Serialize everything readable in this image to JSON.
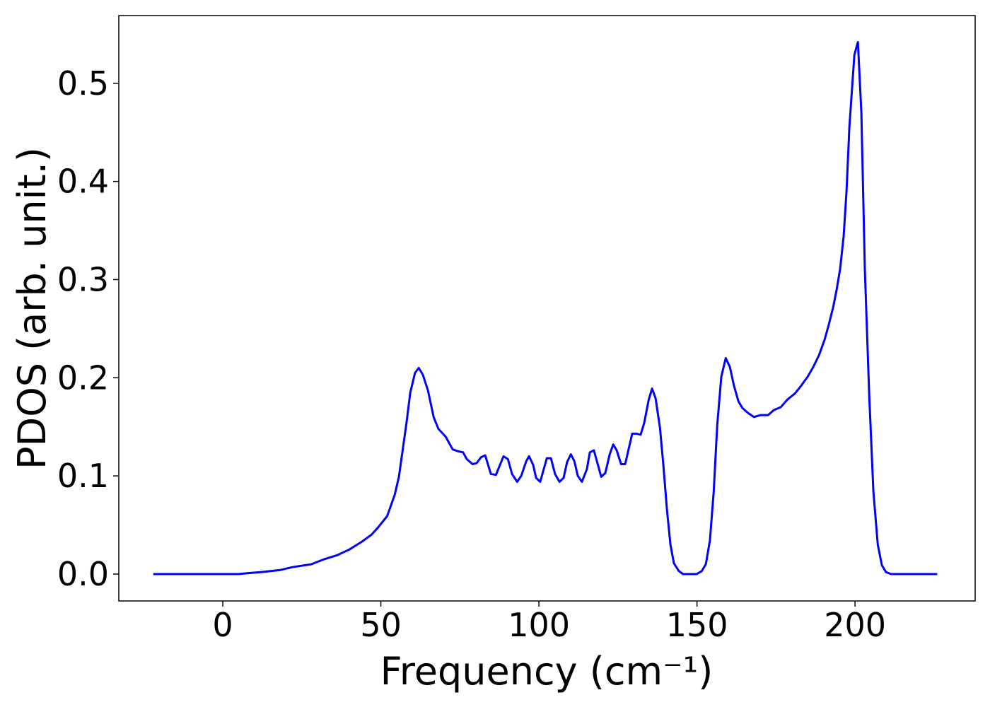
{
  "chart_data": {
    "type": "line",
    "xlabel": "Frequency (cm⁻¹)",
    "ylabel": "PDOS (arb. unit.)",
    "color": "#0000ff",
    "x": [
      -22,
      -10,
      0,
      5,
      8,
      12,
      18,
      22,
      28,
      32,
      36,
      40,
      44,
      47,
      49,
      52,
      54.4,
      55.7,
      56.8,
      58.2,
      59.3,
      60.8,
      62,
      63.3,
      64.9,
      66.7,
      68.2,
      70.5,
      72.7,
      74.5,
      76,
      77.2,
      79,
      80.3,
      81.7,
      83,
      84.8,
      86.4,
      88.8,
      90.2,
      91.5,
      93.1,
      94.4,
      96,
      96.9,
      98.2,
      99.1,
      100.4,
      102.5,
      103.8,
      105.1,
      106.5,
      107.8,
      108.9,
      110.1,
      111.2,
      112.3,
      113.6,
      115.2,
      116.1,
      117.4,
      119.7,
      121,
      122.4,
      123.5,
      124.6,
      126,
      127.3,
      129.5,
      130.9,
      132.2,
      133.3,
      134.7,
      135.8,
      136.9,
      138.3,
      139.4,
      140.5,
      141.6,
      142.7,
      144.3,
      145.6,
      149.9,
      151.5,
      152.8,
      154.1,
      155.3,
      156.4,
      157.7,
      159.1,
      160.4,
      161.7,
      163.1,
      164.4,
      166.2,
      168,
      170.2,
      172.5,
      174.3,
      176.5,
      178.7,
      181,
      183,
      185,
      186.8,
      188.6,
      190.4,
      191.7,
      193.1,
      194.2,
      195.3,
      196.4,
      197.3,
      198.2,
      199.8,
      200.9,
      202,
      203.1,
      204.5,
      205.8,
      207.2,
      208.5,
      209.8,
      211.4,
      226
    ],
    "values": [
      0,
      0,
      0,
      0,
      0.001,
      0.002,
      0.004,
      0.007,
      0.01,
      0.015,
      0.019,
      0.025,
      0.033,
      0.04,
      0.047,
      0.059,
      0.081,
      0.099,
      0.124,
      0.156,
      0.185,
      0.205,
      0.21,
      0.203,
      0.187,
      0.16,
      0.148,
      0.14,
      0.127,
      0.125,
      0.124,
      0.117,
      0.112,
      0.113,
      0.119,
      0.121,
      0.102,
      0.101,
      0.12,
      0.117,
      0.102,
      0.094,
      0.1,
      0.115,
      0.12,
      0.111,
      0.098,
      0.094,
      0.118,
      0.118,
      0.102,
      0.094,
      0.098,
      0.114,
      0.122,
      0.115,
      0.1,
      0.094,
      0.107,
      0.124,
      0.126,
      0.099,
      0.103,
      0.122,
      0.132,
      0.126,
      0.112,
      0.112,
      0.143,
      0.143,
      0.142,
      0.154,
      0.177,
      0.189,
      0.179,
      0.149,
      0.11,
      0.066,
      0.03,
      0.011,
      0.003,
      0,
      0,
      0.003,
      0.01,
      0.034,
      0.084,
      0.151,
      0.201,
      0.22,
      0.211,
      0.192,
      0.176,
      0.169,
      0.164,
      0.16,
      0.162,
      0.162,
      0.167,
      0.17,
      0.178,
      0.184,
      0.192,
      0.201,
      0.211,
      0.223,
      0.239,
      0.254,
      0.272,
      0.29,
      0.311,
      0.344,
      0.39,
      0.455,
      0.529,
      0.542,
      0.47,
      0.311,
      0.182,
      0.084,
      0.03,
      0.009,
      0.002,
      0,
      0
    ],
    "xlim": [
      -32.9,
      238.0
    ],
    "ylim": [
      -0.0274,
      0.569
    ],
    "xticks": [
      0,
      50,
      100,
      150,
      200
    ],
    "yticks": [
      {
        "value": 0,
        "label": "0.0"
      },
      0.1,
      0.2,
      0.3,
      0.4,
      0.5
    ]
  }
}
